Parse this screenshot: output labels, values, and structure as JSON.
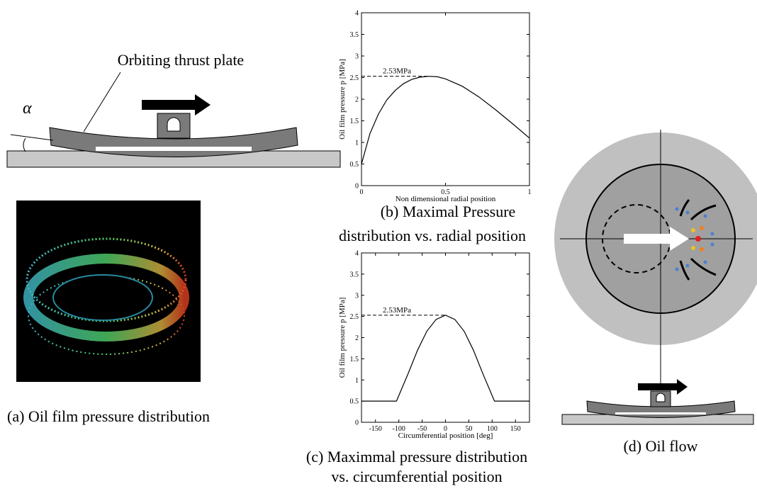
{
  "chart_data": [
    {
      "type": "line",
      "caption": [
        "(b) Maximal Pressure",
        "distribution vs. radial position"
      ],
      "xlabel": "Non dimensional radial position",
      "ylabel": "Oil film pressure p [MPa]",
      "x": [
        0,
        0.05,
        0.1,
        0.15,
        0.2,
        0.25,
        0.3,
        0.35,
        0.4,
        0.45,
        0.5,
        0.6,
        0.7,
        0.8,
        0.9,
        1
      ],
      "values": [
        0.5,
        1.2,
        1.65,
        1.98,
        2.2,
        2.36,
        2.46,
        2.51,
        2.53,
        2.52,
        2.47,
        2.3,
        2.05,
        1.75,
        1.43,
        1.1
      ],
      "color": "#000000",
      "peak": {
        "value": 2.53,
        "label": "2.53MPa",
        "x": 0.4
      },
      "xlim": [
        0,
        1
      ],
      "xticks": [
        0,
        0.5,
        1
      ],
      "ylim": [
        0,
        4
      ],
      "yticks": [
        0,
        0.5,
        1,
        1.5,
        2,
        2.5,
        3,
        3.5,
        4
      ]
    },
    {
      "type": "line",
      "caption": [
        "(c) Maximmal pressure distribution",
        "vs. circumferential position"
      ],
      "xlabel": "Circumferential position [deg]",
      "ylabel": "Oil film pressure p [MPa]",
      "x": [
        -180,
        -105,
        -80,
        -60,
        -40,
        -20,
        0,
        20,
        40,
        60,
        80,
        105,
        180
      ],
      "values": [
        0.5,
        0.5,
        1.15,
        1.7,
        2.15,
        2.43,
        2.53,
        2.43,
        2.15,
        1.7,
        1.15,
        0.5,
        0.5
      ],
      "color": "#000000",
      "peak": {
        "value": 2.53,
        "label": "2.53MPa",
        "x": 0
      },
      "xlim": [
        -180,
        180
      ],
      "xticks": [
        -150,
        -100,
        -50,
        0,
        50,
        100,
        150
      ],
      "ylim": [
        0,
        4
      ],
      "yticks": [
        0,
        0.5,
        1,
        1.5,
        2,
        2.5,
        3,
        3.5,
        4
      ]
    }
  ],
  "diagram": {
    "plate_label": "Orbiting thrust plate",
    "angle_symbol": "α",
    "caption_a": "(a) Oil film pressure distribution",
    "caption_d": "(d) Oil flow"
  }
}
